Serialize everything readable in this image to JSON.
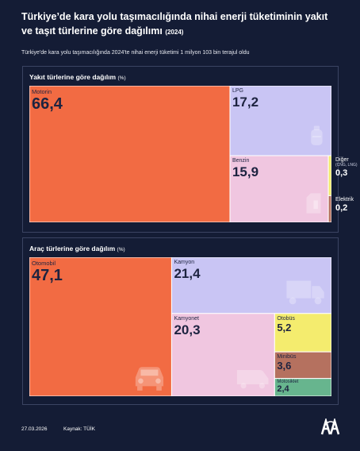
{
  "title": "Türkiye’de kara yolu taşımacılığında nihai enerji tüketiminin yakıt ve taşıt türlerine göre dağılımı",
  "title_year": "(2024)",
  "subtitle": "Türkiye'de kara yolu taşımacılığında 2024'te nihai enerji tüketimi 1 milyon 103 bin terajul oldu",
  "footer": {
    "date": "27.03.2026",
    "source": "Kaynak: TÜİK"
  },
  "colors": {
    "background": "#141c35",
    "orange": "#f26b43",
    "lavender": "#c9c5f4",
    "pink": "#f0c6e0",
    "yellow": "#f4ec6e",
    "brown": "#b5715f",
    "green": "#67b58e"
  },
  "chart_data": [
    {
      "type": "treemap",
      "title": "Yakıt türlerine göre dağılım",
      "unit": "(%)",
      "items": [
        {
          "label": "Motorin",
          "value": 66.4,
          "display": "66,4",
          "color": "#f26b43",
          "icon": ""
        },
        {
          "label": "LPG",
          "value": 17.2,
          "display": "17,2",
          "color": "#c9c5f4",
          "icon": "gas-cylinder-icon"
        },
        {
          "label": "Benzin",
          "value": 15.9,
          "display": "15,9",
          "color": "#f0c6e0",
          "icon": "fuel-can-icon"
        },
        {
          "label": "Diğer",
          "sublabel": "(CNG, LNG)",
          "value": 0.3,
          "display": "0,3",
          "color": "#f4ec6e",
          "icon": ""
        },
        {
          "label": "Elektrik",
          "value": 0.2,
          "display": "0,2",
          "color": "#b5715f",
          "icon": ""
        }
      ]
    },
    {
      "type": "treemap",
      "title": "Araç türlerine göre dağılım",
      "unit": "(%)",
      "items": [
        {
          "label": "Otomobil",
          "value": 47.1,
          "display": "47,1",
          "color": "#f26b43",
          "icon": "car-icon"
        },
        {
          "label": "Kamyon",
          "value": 21.4,
          "display": "21,4",
          "color": "#c9c5f4",
          "icon": "truck-icon"
        },
        {
          "label": "Kamyonet",
          "value": 20.3,
          "display": "20,3",
          "color": "#f0c6e0",
          "icon": "van-icon"
        },
        {
          "label": "Otobüs",
          "value": 5.2,
          "display": "5,2",
          "color": "#f4ec6e",
          "icon": ""
        },
        {
          "label": "Minibüs",
          "value": 3.6,
          "display": "3,6",
          "color": "#b5715f",
          "icon": ""
        },
        {
          "label": "Motosiklet",
          "value": 2.4,
          "display": "2,4",
          "color": "#67b58e",
          "icon": ""
        }
      ]
    }
  ]
}
